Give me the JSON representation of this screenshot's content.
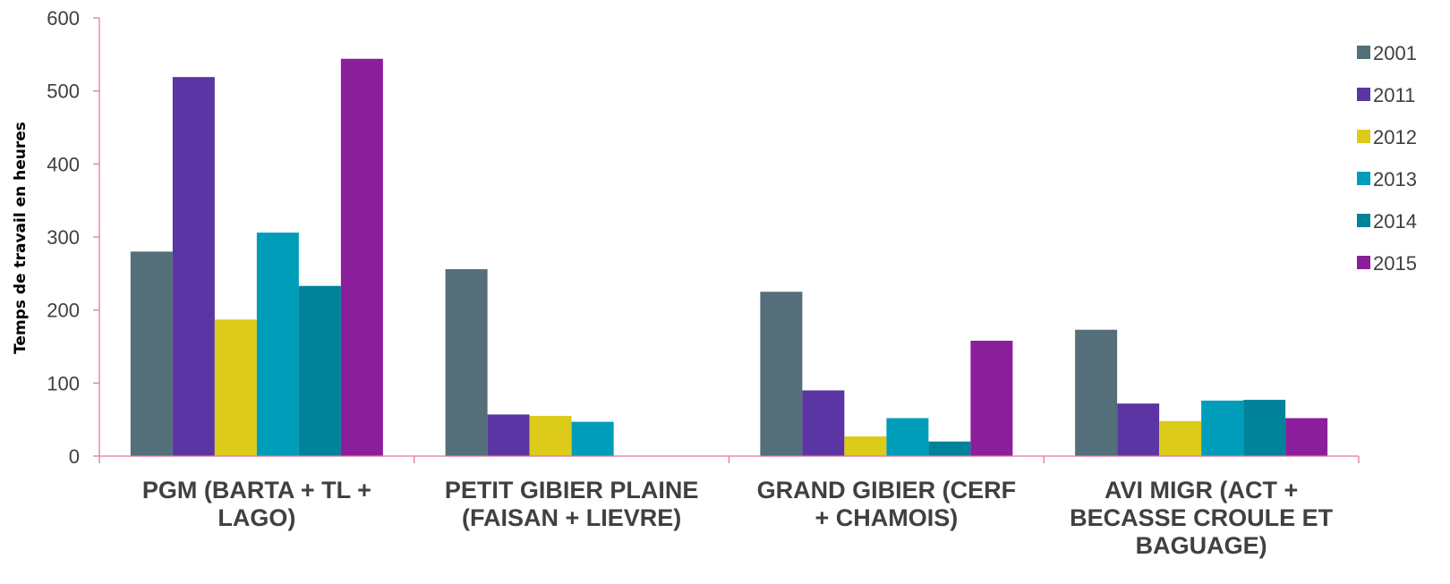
{
  "chart_data": {
    "type": "bar",
    "title": "",
    "xlabel": "",
    "ylabel": "Temps de travail en heures",
    "ylim": [
      0,
      600
    ],
    "yticks": [
      0,
      100,
      200,
      300,
      400,
      500,
      600
    ],
    "grid": false,
    "legend_position": "right",
    "axis_color": "#e07a9a",
    "categories": [
      [
        "PGM (BARTA + TL +",
        "LAGO)"
      ],
      [
        "PETIT GIBIER PLAINE",
        "(FAISAN + LIEVRE)"
      ],
      [
        "GRAND GIBIER (CERF",
        "+ CHAMOIS)"
      ],
      [
        "AVI MIGR (ACT +",
        "BECASSE CROULE ET",
        "BAGUAGE)"
      ]
    ],
    "series": [
      {
        "name": "2001",
        "color": "#546e7a",
        "values": [
          280,
          256,
          225,
          173
        ]
      },
      {
        "name": "2011",
        "color": "#5b35a3",
        "values": [
          519,
          57,
          90,
          72
        ]
      },
      {
        "name": "2012",
        "color": "#dccb19",
        "values": [
          187,
          55,
          27,
          48
        ]
      },
      {
        "name": "2013",
        "color": "#009dbb",
        "values": [
          306,
          47,
          52,
          76
        ]
      },
      {
        "name": "2014",
        "color": "#00829a",
        "values": [
          233,
          0,
          20,
          77
        ]
      },
      {
        "name": "2015",
        "color": "#8b1f9b",
        "values": [
          544,
          0,
          158,
          52
        ]
      }
    ]
  }
}
